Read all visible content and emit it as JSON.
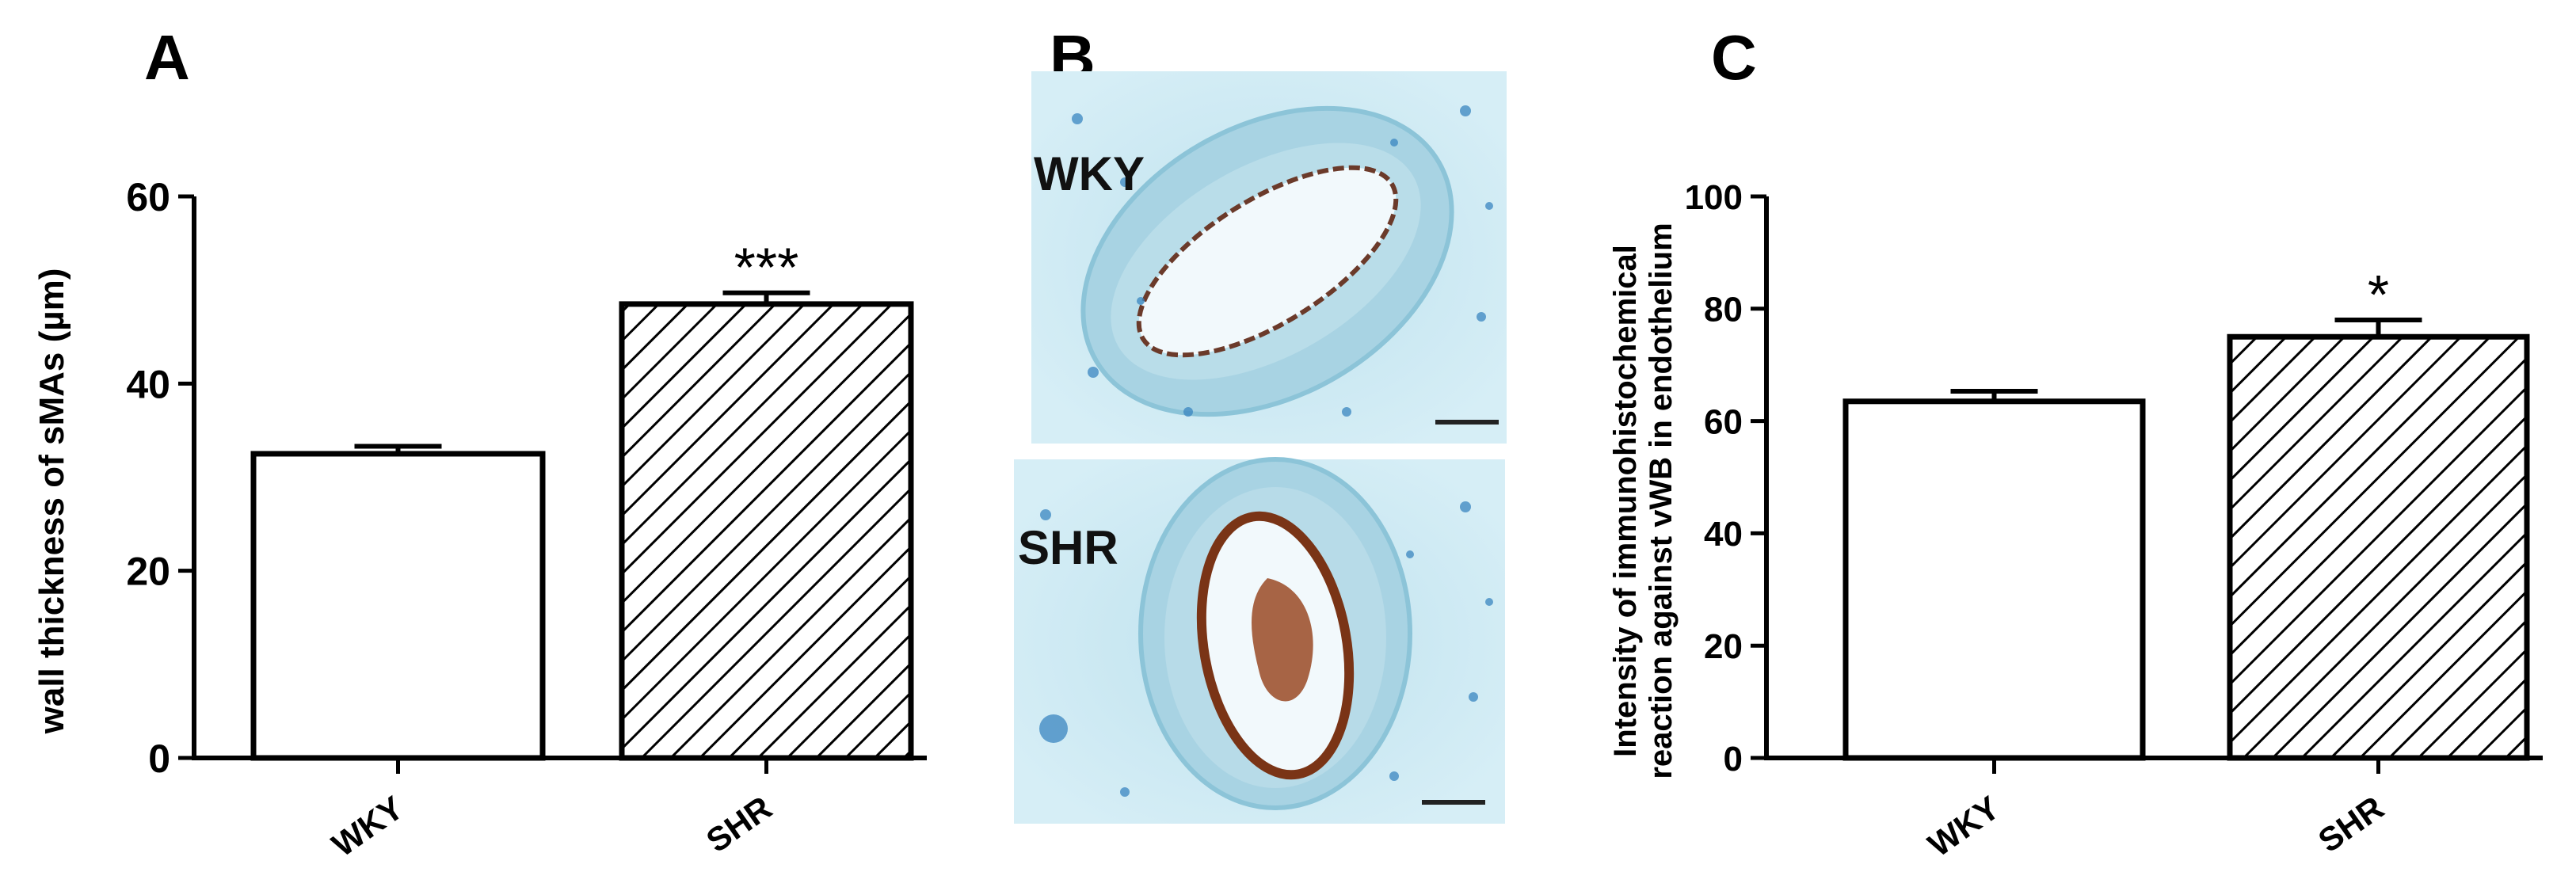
{
  "panels": {
    "A": {
      "letter": "A"
    },
    "B": {
      "letter": "B",
      "top_label": "WKY",
      "bottom_label": "SHR"
    },
    "C": {
      "letter": "C"
    }
  },
  "chart_data": [
    {
      "panel": "A",
      "type": "bar",
      "categories": [
        "WKY",
        "SHR"
      ],
      "values": [
        32.5,
        48.5
      ],
      "errors": [
        0.8,
        1.2
      ],
      "fills": [
        "white",
        "hatched"
      ],
      "significance": [
        "",
        "***"
      ],
      "title": "",
      "xlabel": "",
      "ylabel": "wall thickness of sMAs (µm)",
      "ylim": [
        0,
        60
      ],
      "yticks": [
        0,
        20,
        40,
        60
      ],
      "grid": false
    },
    {
      "panel": "C",
      "type": "bar",
      "categories": [
        "WKY",
        "SHR"
      ],
      "values": [
        63.5,
        75.0
      ],
      "errors": [
        1.8,
        3.0
      ],
      "fills": [
        "white",
        "hatched"
      ],
      "significance": [
        "",
        "*"
      ],
      "title": "",
      "xlabel": "",
      "ylabel_lines": [
        "Intensity of immunohistochemical",
        "reaction against vWB in endothelium"
      ],
      "ylim": [
        0,
        100
      ],
      "yticks": [
        0,
        20,
        40,
        60,
        80,
        100
      ],
      "grid": false
    }
  ],
  "colors": {
    "axis": "#000000",
    "bar_fill": "#ffffff",
    "hatch": "#000000",
    "tissue_background": "#d9eef6",
    "tissue_wall": "#a8d3e3",
    "nuclei": "#3a86c0",
    "stain": "#7a3416",
    "lumen": "#f2f9fc"
  }
}
